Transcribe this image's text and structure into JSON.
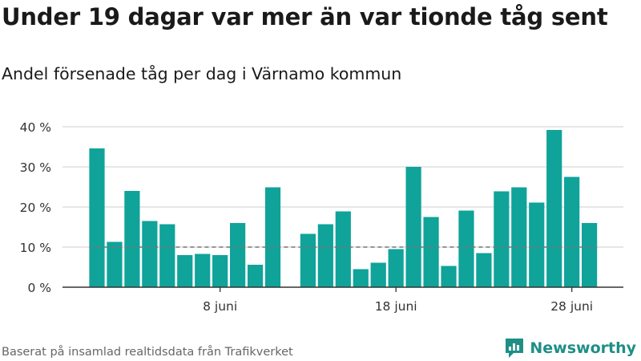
{
  "title": "Under 19 dagar var mer än var tionde tåg sent",
  "subtitle": "Andel försenade tåg per dag i Värnamo kommun",
  "source": "Baserat på insamlad realtidsdata från Trafikverket",
  "brand": {
    "name": "Newsworthy",
    "color": "#1e8f86"
  },
  "chart_data": {
    "type": "bar",
    "x_unit": "day of June",
    "x": [
      1,
      2,
      3,
      4,
      5,
      6,
      7,
      8,
      9,
      10,
      11,
      13,
      14,
      15,
      16,
      17,
      18,
      19,
      20,
      21,
      22,
      23,
      24,
      25,
      26,
      27,
      28,
      29
    ],
    "values": [
      34.6,
      11.3,
      24.0,
      16.5,
      15.7,
      8.0,
      8.3,
      8.0,
      16.0,
      5.6,
      24.9,
      13.3,
      15.7,
      18.9,
      4.5,
      6.1,
      9.5,
      30.0,
      17.5,
      5.3,
      19.1,
      8.5,
      23.9,
      24.9,
      21.1,
      39.2,
      27.5,
      16.0
    ],
    "ylim": [
      0,
      40
    ],
    "yticks": [
      0,
      10,
      20,
      30,
      40
    ],
    "ytick_labels": [
      "0 %",
      "10 %",
      "20 %",
      "30 %",
      "40 %"
    ],
    "xticks": [
      8,
      18,
      28
    ],
    "xtick_labels": [
      "8 juni",
      "18 juni",
      "28 juni"
    ],
    "reference_line": {
      "value": 10,
      "style": "dashed",
      "color": "#777777"
    },
    "bar_color": "#0fa39a",
    "grid": true
  }
}
